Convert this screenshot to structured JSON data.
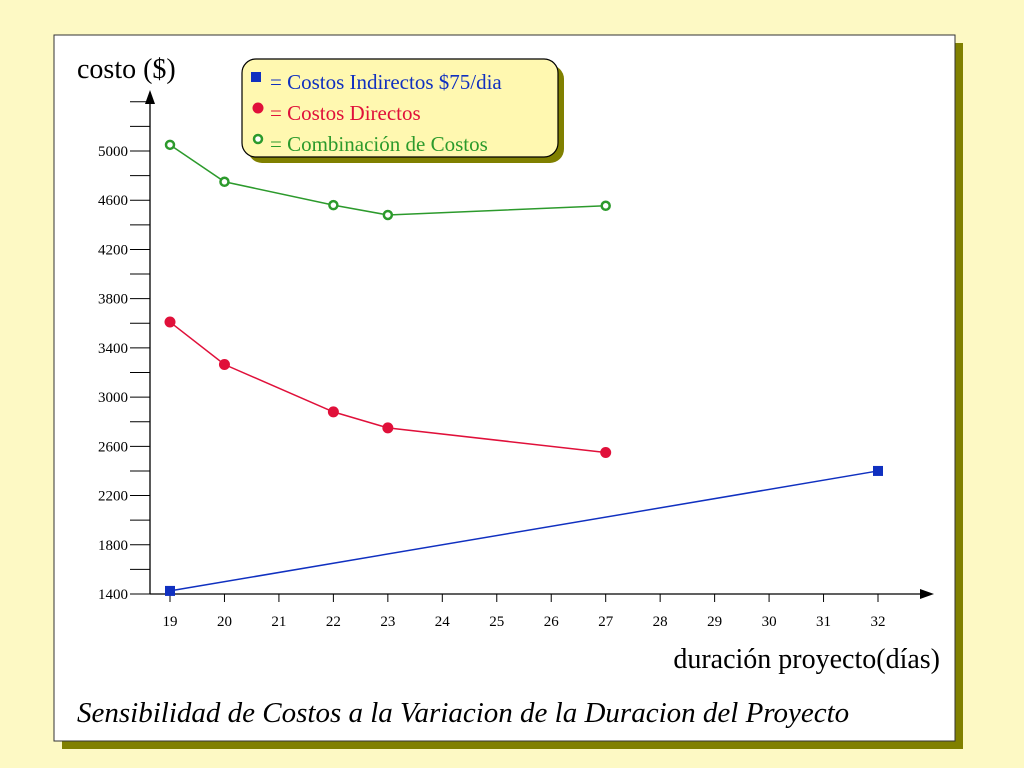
{
  "colors": {
    "background": "#fdf9c4",
    "panel": "#ffffff",
    "panel_shadow": "#808000",
    "legend_fill": "#fff8b0",
    "blue": "#1030c0",
    "red": "#e0103a",
    "green": "#2c9a2c"
  },
  "chart_data": {
    "type": "line",
    "title": "Sensibilidad de Costos a la Variacion de la Duracion del Proyecto",
    "xlabel": "duración proyecto(días)",
    "ylabel": "costo ($)",
    "xlim": [
      19,
      32
    ],
    "ylim": [
      1400,
      5000
    ],
    "x_ticks": [
      19,
      20,
      21,
      22,
      23,
      24,
      25,
      26,
      27,
      28,
      29,
      30,
      31,
      32
    ],
    "y_ticks": [
      1400,
      1800,
      2200,
      2600,
      3000,
      3400,
      3800,
      4200,
      4600,
      5000
    ],
    "grid": false,
    "legend_position": "top-center",
    "series": [
      {
        "name": "= Costos Indirectos $75/dia",
        "marker": "square",
        "color": "#1030c0",
        "points": [
          [
            19,
            1425
          ],
          [
            32,
            2400
          ]
        ]
      },
      {
        "name": "= Costos Directos",
        "marker": "filled-circle",
        "color": "#e0103a",
        "points": [
          [
            19,
            3610
          ],
          [
            20,
            3265
          ],
          [
            22,
            2880
          ],
          [
            23,
            2750
          ],
          [
            27,
            2550
          ]
        ]
      },
      {
        "name": "= Combinación de Costos",
        "marker": "open-circle",
        "color": "#2c9a2c",
        "points": [
          [
            19,
            5050
          ],
          [
            20,
            4750
          ],
          [
            22,
            4560
          ],
          [
            23,
            4480
          ],
          [
            27,
            4555
          ]
        ]
      }
    ]
  }
}
